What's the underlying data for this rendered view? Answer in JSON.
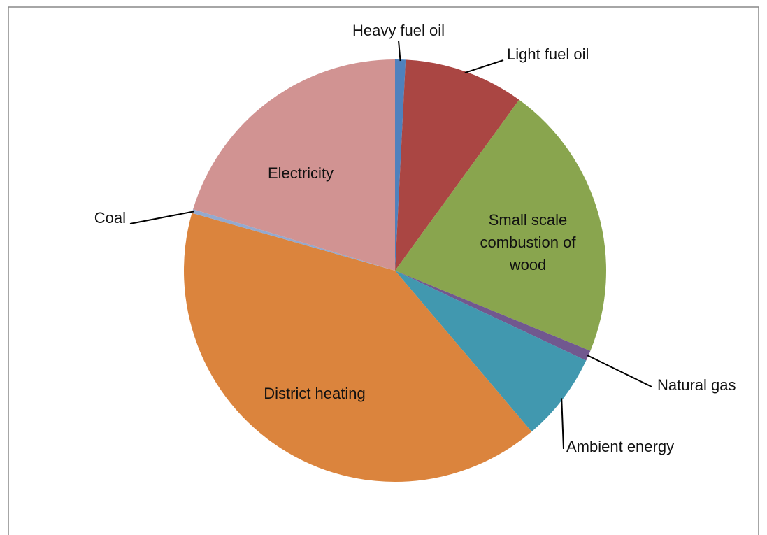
{
  "chart_data": {
    "type": "pie",
    "categories": [
      "Heavy fuel oil",
      "Light fuel oil",
      "Small scale combustion of wood",
      "Natural gas",
      "Ambient energy",
      "District heating",
      "Coal",
      "Electricity"
    ],
    "values": [
      0.8,
      9.2,
      21.2,
      0.8,
      6.8,
      40.6,
      0.3,
      20.3
    ],
    "colors": [
      "#4f81bd",
      "#aa4643",
      "#89a54e",
      "#71588f",
      "#4198af",
      "#db843d",
      "#93a9cf",
      "#d19392"
    ]
  }
}
